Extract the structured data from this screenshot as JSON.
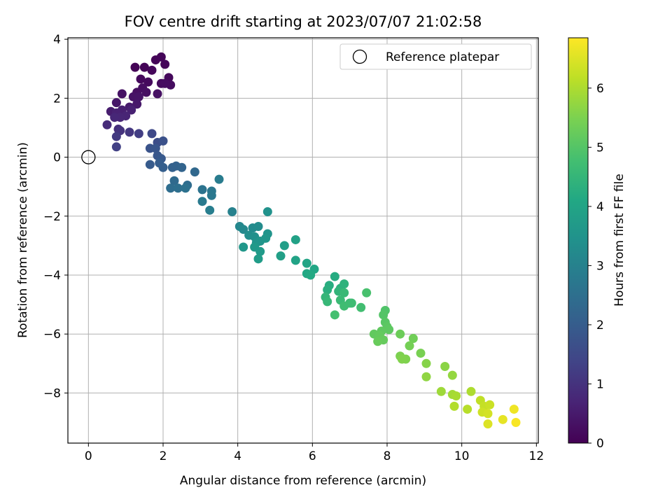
{
  "chart_data": {
    "type": "scatter",
    "title": "FOV centre drift starting at 2023/07/07 21:02:58",
    "xlabel": "Angular distance from reference (arcmin)",
    "ylabel": "Rotation from reference (arcmin)",
    "xlim": [
      -0.55,
      12.05
    ],
    "ylim": [
      -9.7,
      4.05
    ],
    "xticks": [
      0,
      2,
      4,
      6,
      8,
      10,
      12
    ],
    "yticks": [
      -8,
      -6,
      -4,
      -2,
      0,
      2,
      4
    ],
    "grid": true,
    "legend": {
      "position": "top-right",
      "entries": [
        "Reference platepar"
      ]
    },
    "reference_point": {
      "name": "Reference platepar",
      "x": 0,
      "y": 0
    },
    "colorbar": {
      "label": "Hours from first FF file",
      "colormap": "viridis",
      "range": [
        0,
        6.85
      ],
      "ticks": [
        0,
        1,
        2,
        3,
        4,
        5,
        6
      ]
    },
    "points": [
      {
        "x": 1.25,
        "y": 3.05,
        "c": 0.05
      },
      {
        "x": 1.5,
        "y": 3.05,
        "c": 0.06
      },
      {
        "x": 1.8,
        "y": 3.3,
        "c": 0.07
      },
      {
        "x": 1.95,
        "y": 3.4,
        "c": 0.08
      },
      {
        "x": 2.05,
        "y": 3.15,
        "c": 0.1
      },
      {
        "x": 1.7,
        "y": 2.95,
        "c": 0.12
      },
      {
        "x": 2.15,
        "y": 2.7,
        "c": 0.14
      },
      {
        "x": 1.4,
        "y": 2.65,
        "c": 0.16
      },
      {
        "x": 1.6,
        "y": 2.55,
        "c": 0.18
      },
      {
        "x": 1.95,
        "y": 2.5,
        "c": 0.2
      },
      {
        "x": 2.2,
        "y": 2.45,
        "c": 0.22
      },
      {
        "x": 2.05,
        "y": 2.5,
        "c": 0.24
      },
      {
        "x": 1.45,
        "y": 2.35,
        "c": 0.26
      },
      {
        "x": 1.3,
        "y": 2.2,
        "c": 0.28
      },
      {
        "x": 1.55,
        "y": 2.2,
        "c": 0.3
      },
      {
        "x": 1.85,
        "y": 2.15,
        "c": 0.32
      },
      {
        "x": 0.9,
        "y": 2.15,
        "c": 0.34
      },
      {
        "x": 1.2,
        "y": 2.05,
        "c": 0.36
      },
      {
        "x": 1.35,
        "y": 2.05,
        "c": 0.38
      },
      {
        "x": 0.75,
        "y": 1.85,
        "c": 0.42
      },
      {
        "x": 1.3,
        "y": 1.8,
        "c": 0.45
      },
      {
        "x": 1.1,
        "y": 1.7,
        "c": 0.5
      },
      {
        "x": 0.6,
        "y": 1.55,
        "c": 0.55
      },
      {
        "x": 0.9,
        "y": 1.6,
        "c": 0.6
      },
      {
        "x": 1.15,
        "y": 1.6,
        "c": 0.62
      },
      {
        "x": 0.75,
        "y": 1.5,
        "c": 0.65
      },
      {
        "x": 1.0,
        "y": 1.4,
        "c": 0.7
      },
      {
        "x": 0.85,
        "y": 1.35,
        "c": 0.72
      },
      {
        "x": 0.7,
        "y": 1.35,
        "c": 0.75
      },
      {
        "x": 0.5,
        "y": 1.1,
        "c": 0.85
      },
      {
        "x": 0.8,
        "y": 0.95,
        "c": 0.9
      },
      {
        "x": 0.85,
        "y": 0.9,
        "c": 1.0
      },
      {
        "x": 1.1,
        "y": 0.85,
        "c": 1.1
      },
      {
        "x": 0.75,
        "y": 0.7,
        "c": 1.15
      },
      {
        "x": 1.35,
        "y": 0.8,
        "c": 1.25
      },
      {
        "x": 0.75,
        "y": 0.35,
        "c": 1.3
      },
      {
        "x": 1.7,
        "y": 0.8,
        "c": 1.5
      },
      {
        "x": 1.85,
        "y": 0.5,
        "c": 1.6
      },
      {
        "x": 2.0,
        "y": 0.55,
        "c": 1.7
      },
      {
        "x": 1.65,
        "y": 0.3,
        "c": 1.75
      },
      {
        "x": 1.8,
        "y": 0.3,
        "c": 1.8
      },
      {
        "x": 1.85,
        "y": 0.05,
        "c": 1.85
      },
      {
        "x": 1.95,
        "y": -0.05,
        "c": 1.9
      },
      {
        "x": 1.65,
        "y": -0.25,
        "c": 1.95
      },
      {
        "x": 1.9,
        "y": -0.2,
        "c": 2.0
      },
      {
        "x": 2.0,
        "y": -0.35,
        "c": 2.05
      },
      {
        "x": 2.25,
        "y": -0.35,
        "c": 2.1
      },
      {
        "x": 2.35,
        "y": -0.3,
        "c": 2.15
      },
      {
        "x": 2.5,
        "y": -0.35,
        "c": 2.2
      },
      {
        "x": 2.85,
        "y": -0.5,
        "c": 2.3
      },
      {
        "x": 2.3,
        "y": -0.8,
        "c": 2.35
      },
      {
        "x": 2.65,
        "y": -0.95,
        "c": 2.4
      },
      {
        "x": 2.2,
        "y": -1.05,
        "c": 2.45
      },
      {
        "x": 2.4,
        "y": -1.05,
        "c": 2.5
      },
      {
        "x": 2.6,
        "y": -1.05,
        "c": 2.55
      },
      {
        "x": 3.05,
        "y": -1.1,
        "c": 2.6
      },
      {
        "x": 3.3,
        "y": -1.15,
        "c": 2.7
      },
      {
        "x": 3.3,
        "y": -1.3,
        "c": 2.75
      },
      {
        "x": 3.05,
        "y": -1.5,
        "c": 2.8
      },
      {
        "x": 3.5,
        "y": -0.75,
        "c": 2.85
      },
      {
        "x": 3.25,
        "y": -1.8,
        "c": 2.9
      },
      {
        "x": 3.85,
        "y": -1.85,
        "c": 3.0
      },
      {
        "x": 4.05,
        "y": -2.35,
        "c": 3.15
      },
      {
        "x": 4.15,
        "y": -2.45,
        "c": 3.2
      },
      {
        "x": 4.4,
        "y": -2.4,
        "c": 3.25
      },
      {
        "x": 4.55,
        "y": -2.35,
        "c": 3.3
      },
      {
        "x": 4.3,
        "y": -2.65,
        "c": 3.35
      },
      {
        "x": 4.45,
        "y": -2.7,
        "c": 3.4
      },
      {
        "x": 4.8,
        "y": -1.85,
        "c": 3.45
      },
      {
        "x": 4.8,
        "y": -2.6,
        "c": 3.5
      },
      {
        "x": 4.5,
        "y": -2.9,
        "c": 3.52
      },
      {
        "x": 4.6,
        "y": -2.85,
        "c": 3.55
      },
      {
        "x": 4.75,
        "y": -2.75,
        "c": 3.58
      },
      {
        "x": 4.15,
        "y": -3.05,
        "c": 3.6
      },
      {
        "x": 4.45,
        "y": -3.05,
        "c": 3.65
      },
      {
        "x": 4.6,
        "y": -3.2,
        "c": 3.7
      },
      {
        "x": 4.55,
        "y": -3.45,
        "c": 3.75
      },
      {
        "x": 5.25,
        "y": -3.0,
        "c": 3.8
      },
      {
        "x": 5.15,
        "y": -3.35,
        "c": 3.85
      },
      {
        "x": 5.55,
        "y": -2.8,
        "c": 3.9
      },
      {
        "x": 5.55,
        "y": -3.5,
        "c": 3.95
      },
      {
        "x": 5.85,
        "y": -3.6,
        "c": 4.0
      },
      {
        "x": 6.05,
        "y": -3.8,
        "c": 4.05
      },
      {
        "x": 5.85,
        "y": -3.95,
        "c": 4.1
      },
      {
        "x": 5.95,
        "y": -4.0,
        "c": 4.15
      },
      {
        "x": 6.6,
        "y": -4.05,
        "c": 4.2
      },
      {
        "x": 6.45,
        "y": -4.35,
        "c": 4.25
      },
      {
        "x": 6.4,
        "y": -4.5,
        "c": 4.3
      },
      {
        "x": 6.75,
        "y": -4.45,
        "c": 4.35
      },
      {
        "x": 6.85,
        "y": -4.3,
        "c": 4.4
      },
      {
        "x": 6.7,
        "y": -4.55,
        "c": 4.45
      },
      {
        "x": 6.35,
        "y": -4.75,
        "c": 4.5
      },
      {
        "x": 6.4,
        "y": -4.9,
        "c": 4.55
      },
      {
        "x": 6.85,
        "y": -4.6,
        "c": 4.6
      },
      {
        "x": 6.75,
        "y": -4.85,
        "c": 4.62
      },
      {
        "x": 7.0,
        "y": -4.95,
        "c": 4.65
      },
      {
        "x": 7.05,
        "y": -4.95,
        "c": 4.7
      },
      {
        "x": 6.85,
        "y": -5.05,
        "c": 4.72
      },
      {
        "x": 7.3,
        "y": -5.1,
        "c": 4.75
      },
      {
        "x": 6.6,
        "y": -5.35,
        "c": 4.8
      },
      {
        "x": 7.45,
        "y": -4.6,
        "c": 4.85
      },
      {
        "x": 7.95,
        "y": -5.2,
        "c": 4.95
      },
      {
        "x": 7.9,
        "y": -5.35,
        "c": 5.0
      },
      {
        "x": 7.95,
        "y": -5.6,
        "c": 5.05
      },
      {
        "x": 8.0,
        "y": -5.75,
        "c": 5.1
      },
      {
        "x": 8.05,
        "y": -5.85,
        "c": 5.12
      },
      {
        "x": 7.85,
        "y": -5.9,
        "c": 5.15
      },
      {
        "x": 7.65,
        "y": -6.0,
        "c": 5.18
      },
      {
        "x": 7.8,
        "y": -6.05,
        "c": 5.2
      },
      {
        "x": 7.9,
        "y": -6.2,
        "c": 5.22
      },
      {
        "x": 7.75,
        "y": -6.25,
        "c": 5.25
      },
      {
        "x": 8.35,
        "y": -6.0,
        "c": 5.3
      },
      {
        "x": 8.7,
        "y": -6.15,
        "c": 5.35
      },
      {
        "x": 8.6,
        "y": -6.4,
        "c": 5.4
      },
      {
        "x": 8.9,
        "y": -6.65,
        "c": 5.45
      },
      {
        "x": 8.35,
        "y": -6.75,
        "c": 5.5
      },
      {
        "x": 8.5,
        "y": -6.85,
        "c": 5.52
      },
      {
        "x": 8.4,
        "y": -6.85,
        "c": 5.55
      },
      {
        "x": 9.05,
        "y": -7.0,
        "c": 5.6
      },
      {
        "x": 9.55,
        "y": -7.1,
        "c": 5.65
      },
      {
        "x": 9.05,
        "y": -7.45,
        "c": 5.7
      },
      {
        "x": 9.75,
        "y": -7.4,
        "c": 5.75
      },
      {
        "x": 9.45,
        "y": -7.95,
        "c": 5.85
      },
      {
        "x": 9.75,
        "y": -8.05,
        "c": 5.9
      },
      {
        "x": 9.85,
        "y": -8.1,
        "c": 5.95
      },
      {
        "x": 10.25,
        "y": -7.95,
        "c": 6.0
      },
      {
        "x": 9.8,
        "y": -8.45,
        "c": 6.05
      },
      {
        "x": 10.15,
        "y": -8.55,
        "c": 6.1
      },
      {
        "x": 10.5,
        "y": -8.25,
        "c": 6.2
      },
      {
        "x": 10.6,
        "y": -8.45,
        "c": 6.25
      },
      {
        "x": 10.75,
        "y": -8.4,
        "c": 6.3
      },
      {
        "x": 10.55,
        "y": -8.65,
        "c": 6.35
      },
      {
        "x": 10.7,
        "y": -8.7,
        "c": 6.4
      },
      {
        "x": 10.7,
        "y": -9.05,
        "c": 6.5
      },
      {
        "x": 11.1,
        "y": -8.9,
        "c": 6.6
      },
      {
        "x": 11.4,
        "y": -8.55,
        "c": 6.7
      },
      {
        "x": 11.45,
        "y": -9.0,
        "c": 6.8
      }
    ]
  }
}
